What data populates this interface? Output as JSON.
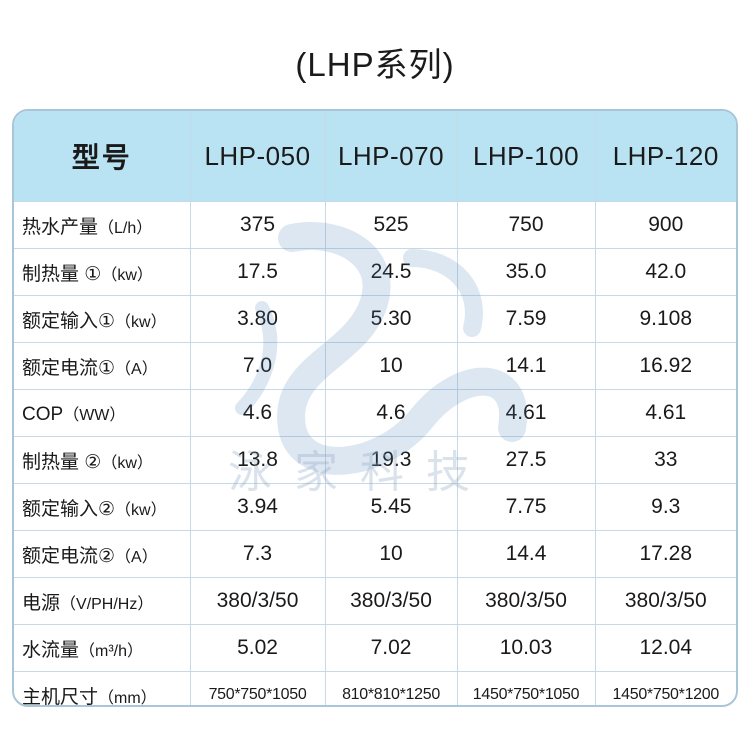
{
  "title": "(LHP系列)",
  "table": {
    "header": {
      "label": "型号",
      "models": [
        "LHP-050",
        "LHP-070",
        "LHP-100",
        "LHP-120"
      ]
    },
    "rows": [
      {
        "name": "热水产量",
        "unit": "（L/h）",
        "values": [
          "375",
          "525",
          "750",
          "900"
        ]
      },
      {
        "name": "制热量 ①",
        "unit": "（kw）",
        "values": [
          "17.5",
          "24.5",
          "35.0",
          "42.0"
        ]
      },
      {
        "name": "额定输入①",
        "unit": "（kw）",
        "values": [
          "3.80",
          "5.30",
          "7.59",
          "9.108"
        ]
      },
      {
        "name": "额定电流①",
        "unit": "（A）",
        "values": [
          "7.0",
          "10",
          "14.1",
          "16.92"
        ]
      },
      {
        "name": "COP",
        "unit": "（WW）",
        "values": [
          "4.6",
          "4.6",
          "4.61",
          "4.61"
        ]
      },
      {
        "name": "制热量 ②",
        "unit": "（kw）",
        "values": [
          "13.8",
          "19.3",
          "27.5",
          "33"
        ]
      },
      {
        "name": "额定输入②",
        "unit": "（kw）",
        "values": [
          "3.94",
          "5.45",
          "7.75",
          "9.3"
        ]
      },
      {
        "name": "额定电流②",
        "unit": "（A）",
        "values": [
          "7.3",
          "10",
          "14.4",
          "17.28"
        ]
      },
      {
        "name": "电源",
        "unit": "（V/PH/Hz）",
        "values": [
          "380/3/50",
          "380/3/50",
          "380/3/50",
          "380/3/50"
        ]
      },
      {
        "name": "水流量",
        "unit": "（m³/h）",
        "values": [
          "5.02",
          "7.02",
          "10.03",
          "12.04"
        ]
      },
      {
        "name": "主机尺寸",
        "unit": "（mm）",
        "values": [
          "750*750*1050",
          "810*810*1250",
          "1450*750*1050",
          "1450*750*1200"
        ]
      }
    ]
  },
  "watermark": {
    "text": "泳家科技",
    "color": "#8fa6c4"
  },
  "colors": {
    "header_bg": "#b9e3f3",
    "border": "#c7d9e6",
    "frame": "#a9c5d8"
  }
}
